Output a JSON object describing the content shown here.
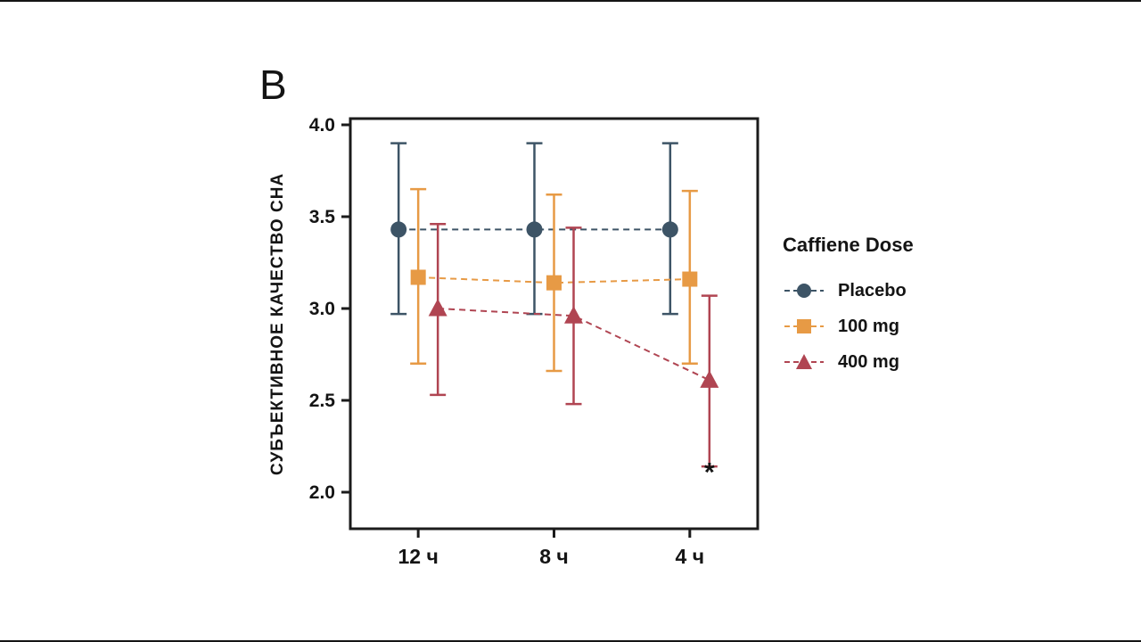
{
  "panel_label": "B",
  "letterbox_color": "#151515",
  "chart_data": {
    "type": "line",
    "title": "",
    "xlabel": "",
    "ylabel": "СУБЪЕКТИВНОЕ КАЧЕСТВО СНА",
    "categories": [
      "12 ч",
      "8 ч",
      "4 ч"
    ],
    "ylim": [
      2.0,
      4.0
    ],
    "yticks": [
      4.0,
      3.5,
      3.0,
      2.5,
      2.0
    ],
    "grid": false,
    "legend_title": "Caffiene Dose",
    "legend_position": "right",
    "line_style": "dashed",
    "series": [
      {
        "name": "Placebo",
        "marker": "circle",
        "color": "#3d5466",
        "values": [
          3.43,
          3.43,
          3.43
        ],
        "err_low": [
          2.97,
          2.97,
          2.97
        ],
        "err_high": [
          3.9,
          3.9,
          3.9
        ]
      },
      {
        "name": "100 mg",
        "marker": "square",
        "color": "#e79a45",
        "values": [
          3.17,
          3.14,
          3.16
        ],
        "err_low": [
          2.7,
          2.66,
          2.7
        ],
        "err_high": [
          3.65,
          3.62,
          3.64
        ]
      },
      {
        "name": "400 mg",
        "marker": "triangle",
        "color": "#b04552",
        "values": [
          3.0,
          2.96,
          2.61
        ],
        "err_low": [
          2.53,
          2.48,
          2.14
        ],
        "err_high": [
          3.46,
          3.44,
          3.07
        ]
      }
    ],
    "annotations": [
      {
        "text": "*",
        "x_category": "4 ч",
        "series": "400 mg",
        "y": 2.06
      }
    ]
  }
}
